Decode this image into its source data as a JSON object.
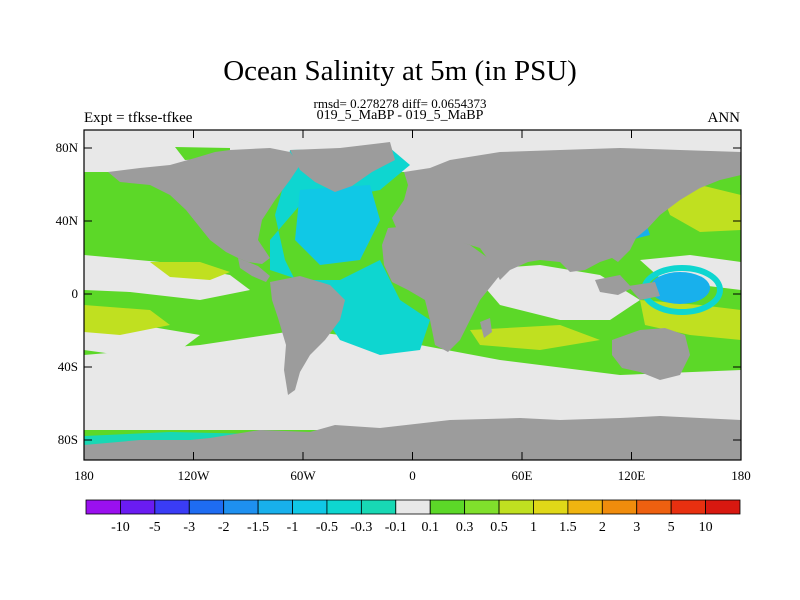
{
  "title": "Ocean Salinity at 5m (in PSU)",
  "stats_line": "rmsd= 0.278278 diff= 0.0654373",
  "case_line": "019_5_MaBP - 019_5_MaBP",
  "expt_label": "Expt = tfkse-tfkee",
  "period_label": "ANN",
  "lat_ticks": [
    "80N",
    "40N",
    "0",
    "40S",
    "80S"
  ],
  "lon_ticks": [
    "180",
    "120W",
    "60W",
    "0",
    "60E",
    "120E",
    "180"
  ],
  "colorbar": {
    "labels": [
      "-10",
      "-5",
      "-3",
      "-2",
      "-1.5",
      "-1",
      "-0.5",
      "-0.3",
      "-0.1",
      "0.1",
      "0.3",
      "0.5",
      "1",
      "1.5",
      "2",
      "3",
      "5",
      "10"
    ],
    "colors": [
      "#9a10ef",
      "#6a1cf2",
      "#3a3cf6",
      "#1e6cf2",
      "#1e90f0",
      "#18b0ec",
      "#10c8e6",
      "#0ed6d0",
      "#18d8b4",
      "#e8e8e8",
      "#5cd828",
      "#80e02c",
      "#c0e020",
      "#e0d818",
      "#f0b410",
      "#f08c0c",
      "#ee6010",
      "#e83010",
      "#d81810"
    ]
  },
  "colors": {
    "land": "#9c9c9c",
    "neutral": "#e8e8e8",
    "frame": "#000000"
  }
}
